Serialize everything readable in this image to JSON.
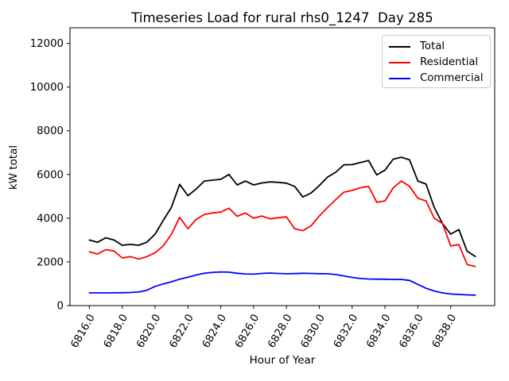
{
  "chart_data": {
    "type": "line",
    "title": "Timeseries Load for rural rhs0_1247  Day 285",
    "xlabel": "Hour of Year",
    "ylabel": "kW total",
    "xlim": [
      6814.82,
      6840.68
    ],
    "ylim": [
      0,
      12712
    ],
    "grid": false,
    "legend": {
      "position": "upper right",
      "frame": true,
      "edge_color": "#cccccc"
    },
    "xticks": {
      "values": [
        6816,
        6818,
        6820,
        6822,
        6824,
        6826,
        6828,
        6830,
        6832,
        6834,
        6836,
        6838
      ],
      "labels": [
        "6816.0",
        "6818.0",
        "6820.0",
        "6822.0",
        "6824.0",
        "6826.0",
        "6828.0",
        "6830.0",
        "6832.0",
        "6834.0",
        "6836.0",
        "6838.0"
      ],
      "rotation": 60
    },
    "yticks": {
      "values": [
        0,
        2000,
        4000,
        6000,
        8000,
        10000,
        12000
      ],
      "labels": [
        "0",
        "2000",
        "4000",
        "6000",
        "8000",
        "10000",
        "12000"
      ]
    },
    "x": [
      6816.0,
      6816.5,
      6817.0,
      6817.5,
      6818.0,
      6818.5,
      6819.0,
      6819.5,
      6820.0,
      6820.5,
      6821.0,
      6821.5,
      6822.0,
      6822.5,
      6823.0,
      6823.5,
      6824.0,
      6824.5,
      6825.0,
      6825.5,
      6826.0,
      6826.5,
      6827.0,
      6827.5,
      6828.0,
      6828.5,
      6829.0,
      6829.5,
      6830.0,
      6830.5,
      6831.0,
      6831.5,
      6832.0,
      6832.5,
      6833.0,
      6833.5,
      6834.0,
      6834.5,
      6835.0,
      6835.5,
      6836.0,
      6836.5,
      6837.0,
      6837.5,
      6838.0,
      6838.5,
      6839.0,
      6839.5
    ],
    "series": [
      {
        "name": "Total",
        "color": "#000000",
        "values": [
          3000,
          2900,
          3100,
          3000,
          2760,
          2800,
          2760,
          2900,
          3270,
          3900,
          4500,
          5550,
          5030,
          5330,
          5700,
          5740,
          5780,
          6000,
          5520,
          5700,
          5520,
          5610,
          5660,
          5640,
          5600,
          5455,
          4970,
          5150,
          5490,
          5880,
          6100,
          6440,
          6450,
          6545,
          6640,
          5980,
          6200,
          6700,
          6790,
          6670,
          5700,
          5560,
          4490,
          3760,
          3270,
          3480,
          2490,
          2250
        ]
      },
      {
        "name": "Residential",
        "color": "#ff0000",
        "values": [
          2460,
          2360,
          2560,
          2500,
          2180,
          2240,
          2130,
          2240,
          2420,
          2730,
          3270,
          4040,
          3520,
          3940,
          4170,
          4240,
          4280,
          4455,
          4085,
          4240,
          4000,
          4100,
          3970,
          4020,
          4060,
          3515,
          3430,
          3650,
          4100,
          4485,
          4850,
          5190,
          5270,
          5394,
          5455,
          4730,
          4790,
          5390,
          5700,
          5455,
          4910,
          4790,
          4000,
          3760,
          2730,
          2790,
          1880,
          1790
        ]
      },
      {
        "name": "Commercial",
        "color": "#0000ff",
        "values": [
          580,
          580,
          580,
          585,
          590,
          600,
          620,
          700,
          880,
          990,
          1090,
          1210,
          1300,
          1400,
          1480,
          1520,
          1540,
          1530,
          1480,
          1450,
          1440,
          1470,
          1490,
          1470,
          1455,
          1465,
          1480,
          1470,
          1460,
          1455,
          1420,
          1360,
          1290,
          1240,
          1215,
          1210,
          1205,
          1195,
          1200,
          1150,
          970,
          790,
          670,
          580,
          530,
          510,
          490,
          480
        ]
      }
    ]
  }
}
